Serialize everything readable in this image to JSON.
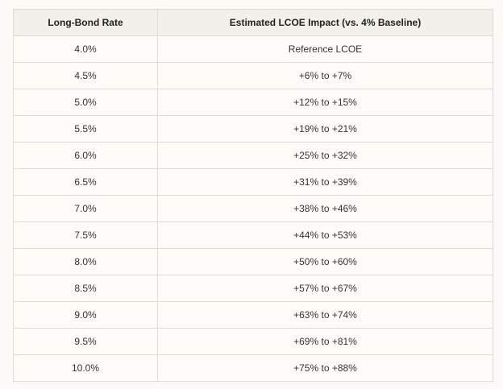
{
  "table": {
    "headers": [
      "Long-Bond Rate",
      "Estimated LCOE Impact (vs. 4% Baseline)"
    ],
    "rows": [
      [
        "4.0%",
        "Reference LCOE"
      ],
      [
        "4.5%",
        "+6% to +7%"
      ],
      [
        "5.0%",
        "+12% to +15%"
      ],
      [
        "5.5%",
        "+19% to +21%"
      ],
      [
        "6.0%",
        "+25% to +32%"
      ],
      [
        "6.5%",
        "+31% to +39%"
      ],
      [
        "7.0%",
        "+38% to +46%"
      ],
      [
        "7.5%",
        "+44% to +53%"
      ],
      [
        "8.0%",
        "+50% to +60%"
      ],
      [
        "8.5%",
        "+57% to +67%"
      ],
      [
        "9.0%",
        "+63% to +74%"
      ],
      [
        "9.5%",
        "+69% to +81%"
      ],
      [
        "10.0%",
        "+75% to +88%"
      ]
    ]
  }
}
